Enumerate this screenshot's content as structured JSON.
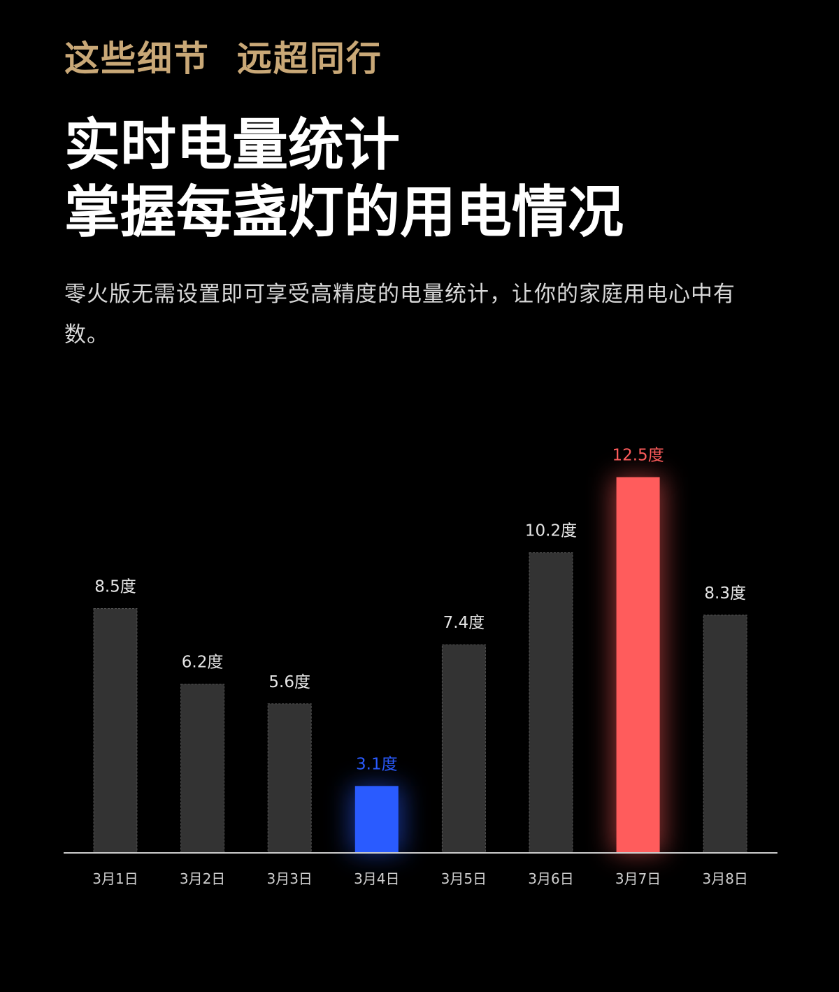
{
  "eyebrow": "这些细节  远超同行",
  "title": {
    "line1": "实时电量统计",
    "line2": "掌握每盏灯的用电情况"
  },
  "description": "零火版无需设置即可享受高精度的电量统计，让你的家庭用电心中有数。",
  "colors": {
    "gold": "#c9a877",
    "bar": "#333333",
    "low": "#2a5bff",
    "high": "#ff5c5c",
    "axis": "#cccccc"
  },
  "chart_data": {
    "type": "bar",
    "title": "",
    "xlabel": "",
    "ylabel": "",
    "unit": "度",
    "categories": [
      "3月1日",
      "3月2日",
      "3月3日",
      "3月4日",
      "3月5日",
      "3月6日",
      "3月7日",
      "3月8日"
    ],
    "values": [
      8.5,
      6.2,
      5.6,
      3.1,
      7.4,
      10.2,
      12.5,
      8.3
    ],
    "labels": [
      "8.5度",
      "6.2度",
      "5.6度",
      "3.1度",
      "7.4度",
      "10.2度",
      "12.5度",
      "8.3度"
    ],
    "highlight": {
      "min_index": 3,
      "max_index": 6
    },
    "grid": false
  }
}
